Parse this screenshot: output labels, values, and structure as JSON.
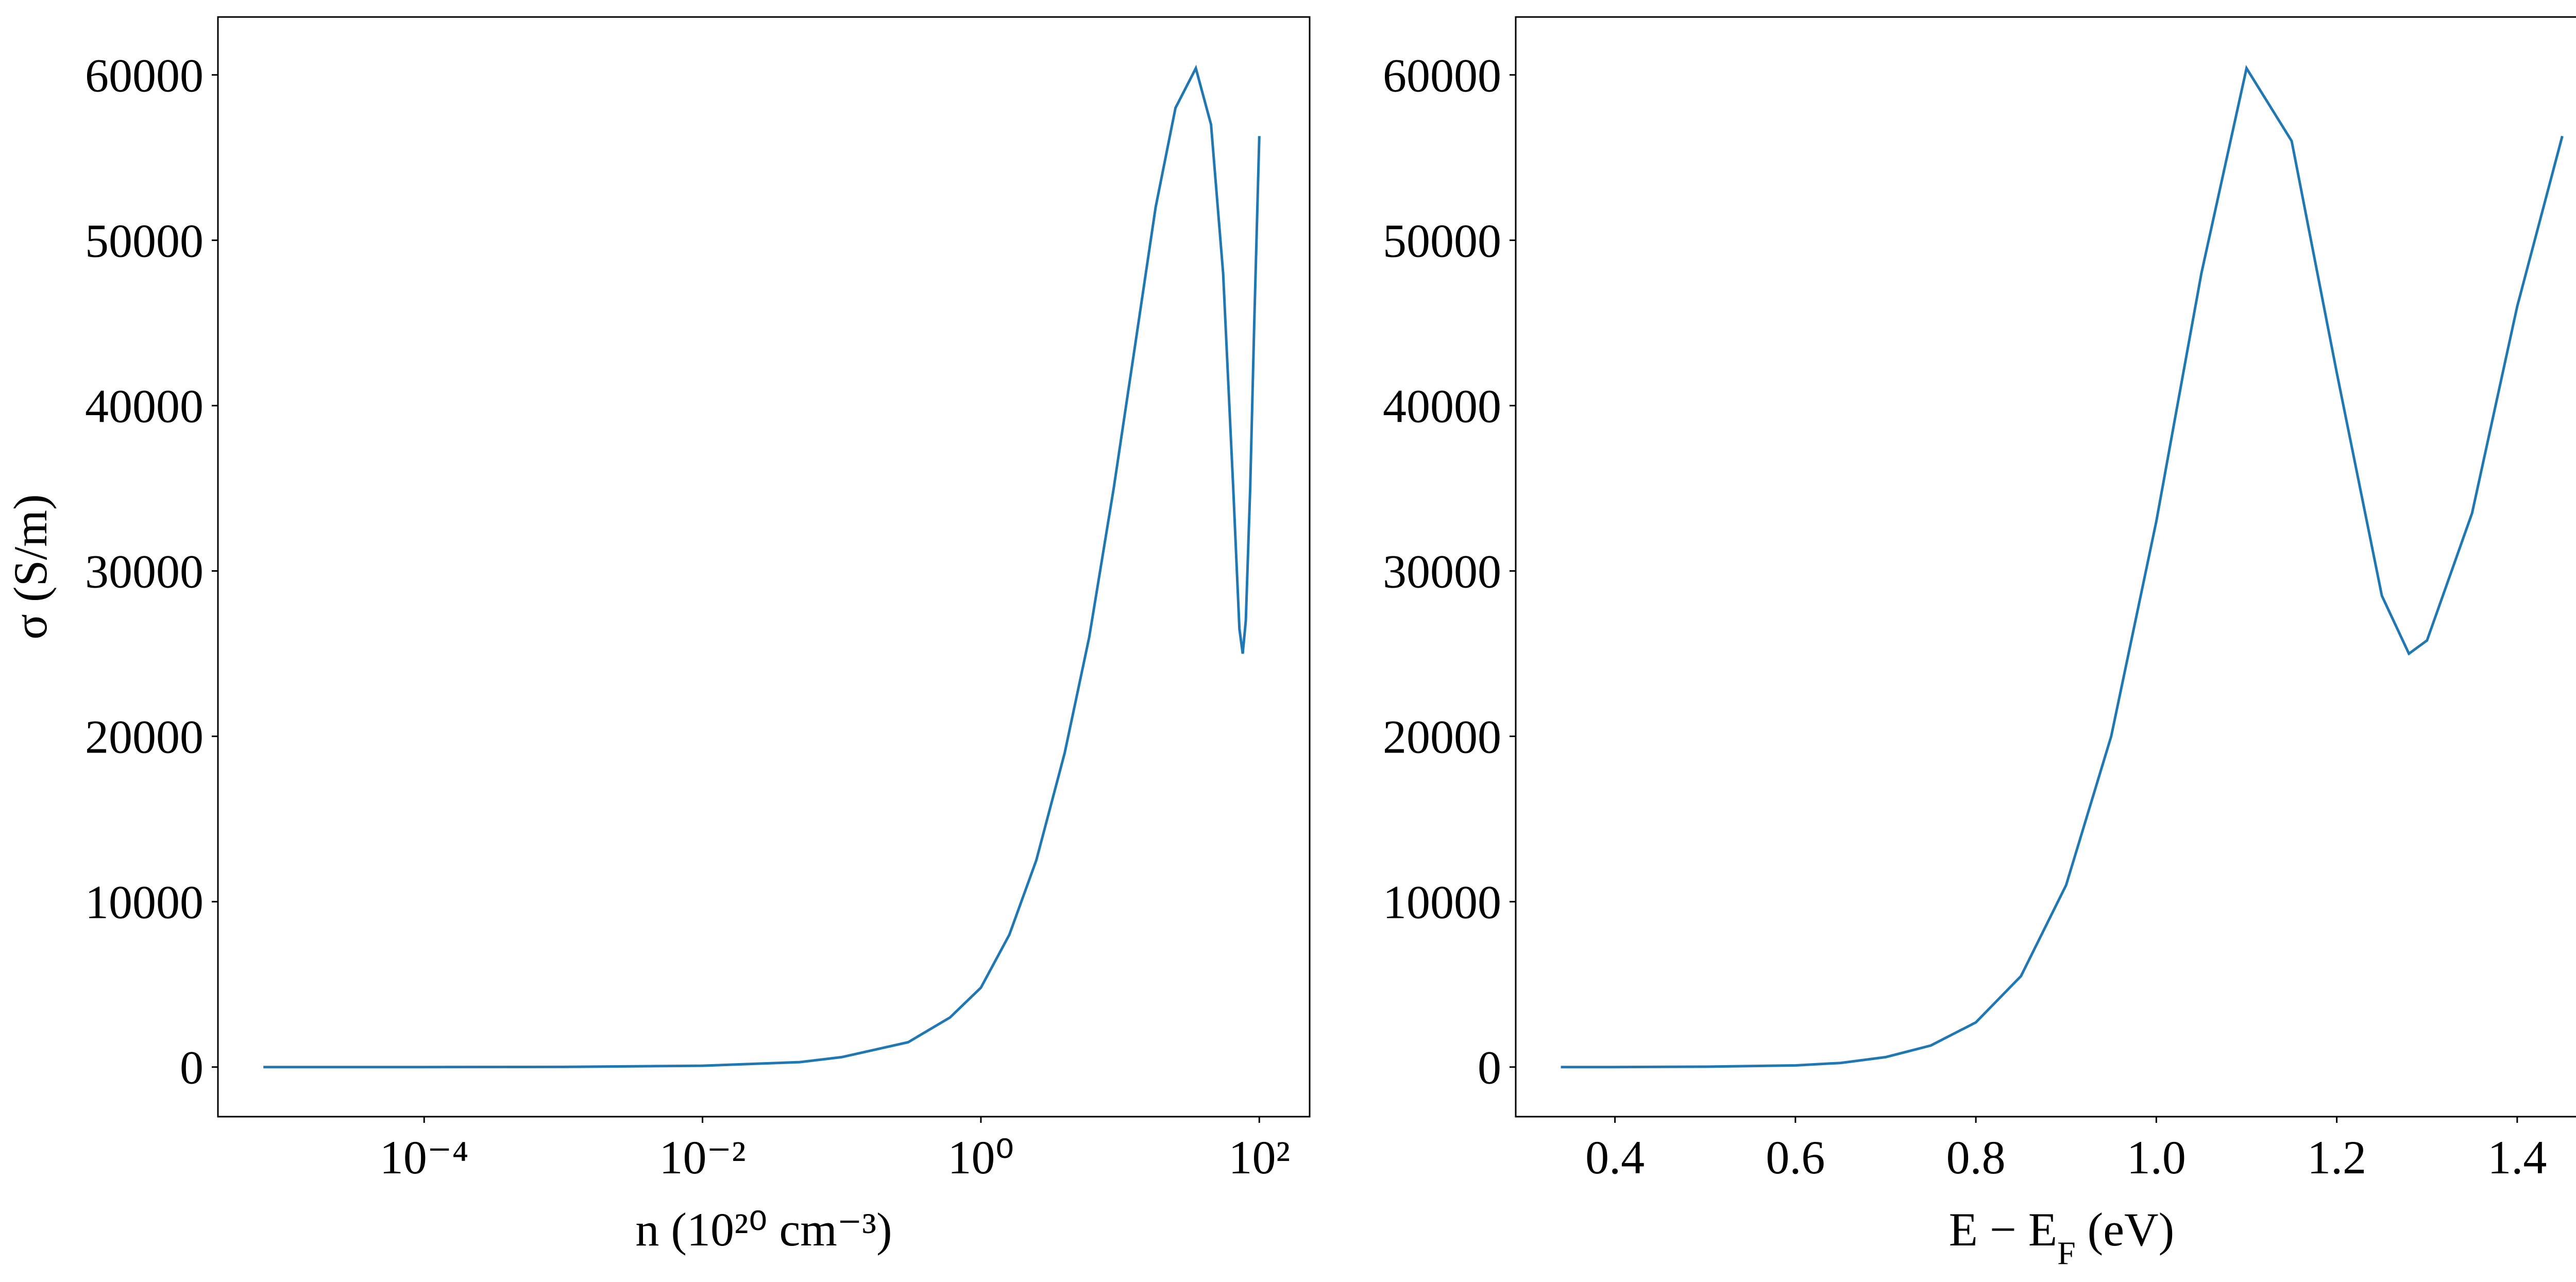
{
  "chart_data": [
    {
      "type": "line",
      "xscale": "log",
      "color": "#1f77b4",
      "xlabel": [
        {
          "text": "n (10²⁰ cm⁻³)"
        }
      ],
      "ylabel": "σ (S/m)",
      "xlim": [
        3.3e-06,
        230
      ],
      "ylim": [
        -3000,
        63500
      ],
      "xticks": [
        {
          "value": 0.0001,
          "label": "10⁻⁴"
        },
        {
          "value": 0.01,
          "label": "10⁻²"
        },
        {
          "value": 1,
          "label": "10⁰"
        },
        {
          "value": 100,
          "label": "10²"
        }
      ],
      "yticks": [
        0,
        10000,
        20000,
        30000,
        40000,
        50000,
        60000
      ],
      "x": [
        7e-06,
        1e-05,
        0.0001,
        0.001,
        0.01,
        0.05,
        0.1,
        0.3,
        0.6,
        1,
        1.6,
        2.5,
        4,
        6,
        9,
        13,
        18,
        25,
        35,
        45,
        55,
        65,
        72,
        76,
        80,
        86,
        92,
        100
      ],
      "values": [
        0,
        0,
        0,
        10,
        80,
        300,
        600,
        1500,
        3000,
        4800,
        8000,
        12500,
        19000,
        26000,
        35000,
        44000,
        52000,
        58000,
        60400,
        57000,
        48000,
        35000,
        26500,
        25000,
        27000,
        35000,
        45000,
        56300
      ]
    },
    {
      "type": "line",
      "xscale": "linear",
      "color": "#1f77b4",
      "xlabel": [
        {
          "text": "E − E"
        },
        {
          "text": "F",
          "shift": "sub"
        },
        {
          "text": " (eV)"
        }
      ],
      "xlim": [
        0.29,
        1.5
      ],
      "ylim": [
        -3000,
        63500
      ],
      "xticks": [
        0.4,
        0.6,
        0.8,
        {
          "value": 1,
          "label": "1.0"
        },
        1.2,
        1.4
      ],
      "yticks": [
        0,
        10000,
        20000,
        30000,
        40000,
        50000,
        60000
      ],
      "x": [
        0.34,
        0.4,
        0.5,
        0.6,
        0.65,
        0.7,
        0.75,
        0.8,
        0.85,
        0.9,
        0.95,
        1.0,
        1.05,
        1.1,
        1.15,
        1.2,
        1.25,
        1.28,
        1.3,
        1.35,
        1.4,
        1.45
      ],
      "values": [
        0,
        0,
        20,
        100,
        250,
        600,
        1300,
        2700,
        5500,
        11000,
        20000,
        33000,
        48000,
        60400,
        56000,
        42000,
        28500,
        25000,
        25800,
        33500,
        46000,
        56300
      ]
    }
  ]
}
